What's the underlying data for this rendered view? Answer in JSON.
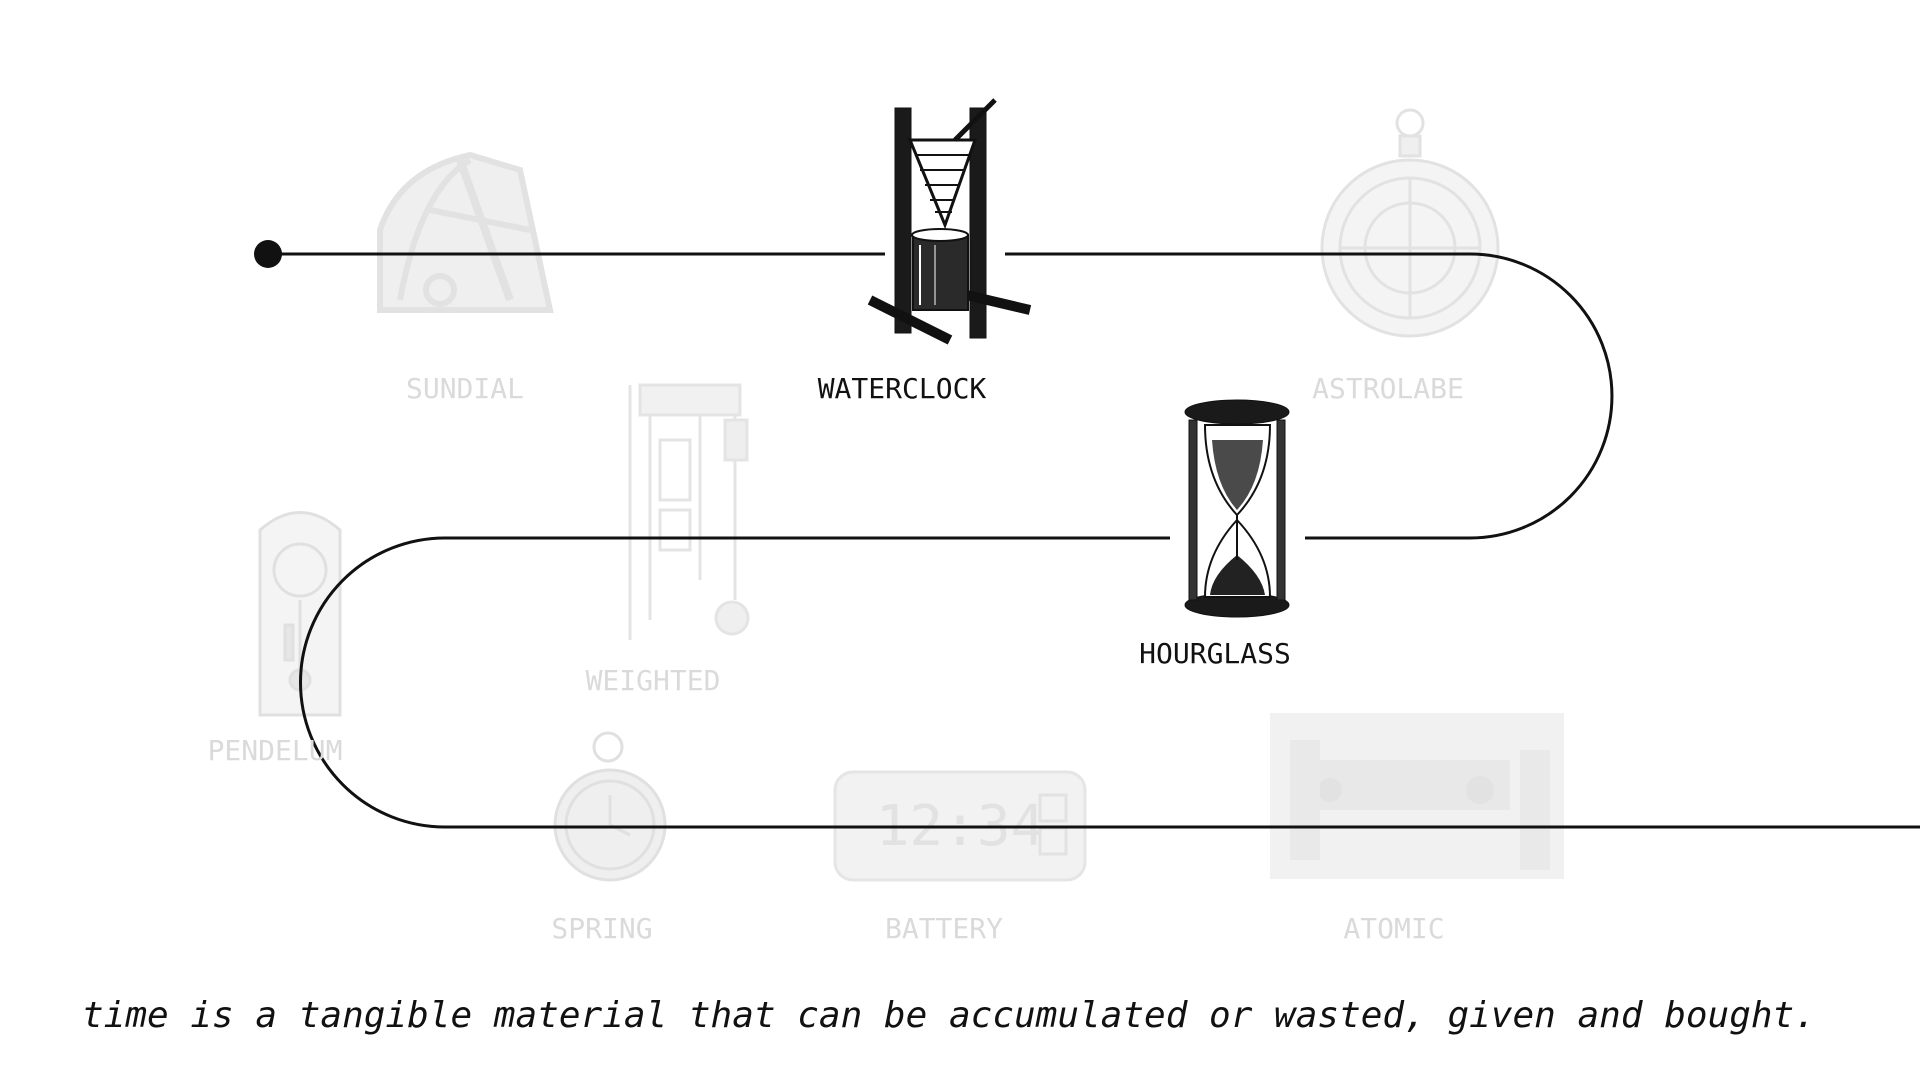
{
  "timeline": {
    "stages": [
      {
        "key": "sundial",
        "label": "SUNDIAL",
        "active": false,
        "icon": "sundial-icon"
      },
      {
        "key": "waterclock",
        "label": "WATERCLOCK",
        "active": true,
        "icon": "waterclock-icon"
      },
      {
        "key": "astrolabe",
        "label": "ASTROLABE",
        "active": false,
        "icon": "astrolabe-icon"
      },
      {
        "key": "hourglass",
        "label": "HOURGLASS",
        "active": true,
        "icon": "hourglass-icon"
      },
      {
        "key": "weighted",
        "label": "WEIGHTED",
        "active": false,
        "icon": "weighted-clock-icon"
      },
      {
        "key": "pendelum",
        "label": "PENDELUM",
        "active": false,
        "icon": "pendulum-clock-icon"
      },
      {
        "key": "spring",
        "label": "SPRING",
        "active": false,
        "icon": "pocket-watch-icon"
      },
      {
        "key": "battery",
        "label": "BATTERY",
        "active": false,
        "icon": "digital-clock-icon"
      },
      {
        "key": "atomic",
        "label": "ATOMIC",
        "active": false,
        "icon": "atomic-lab-icon"
      }
    ],
    "digital_display": "12:34",
    "colors": {
      "path": "#111111",
      "active": "#111111",
      "faded": "#dadada"
    }
  },
  "caption": "time is a tangible material that can be accumulated or wasted, given and bought."
}
